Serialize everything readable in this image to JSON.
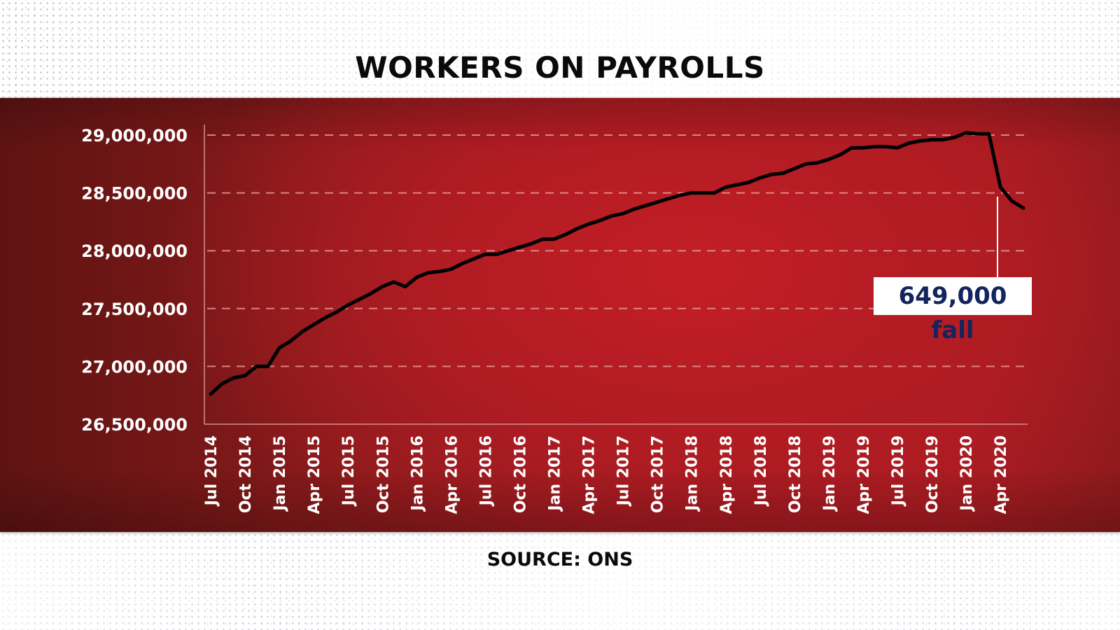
{
  "title": "WORKERS ON PAYROLLS",
  "source": "SOURCE: ONS",
  "annotation": {
    "value": "649,000",
    "label": "fall",
    "text_color": "#13245e",
    "box_color": "#ffffff"
  },
  "colors": {
    "panel_red": "#b41c23",
    "panel_dark": "#5e1312",
    "line": "#000000",
    "grid": "#e8a0a0",
    "axis_text": "#ffffff"
  },
  "chart_data": {
    "type": "line",
    "title": "WORKERS ON PAYROLLS",
    "xlabel": "",
    "ylabel": "",
    "ylim": [
      26500000,
      29000000
    ],
    "grid": true,
    "legend": "none",
    "y_ticks": [
      29000000,
      28500000,
      28000000,
      27500000,
      27000000,
      26500000
    ],
    "y_tick_labels": [
      "29,000,000",
      "28,500,000",
      "28,000,000",
      "27,500,000",
      "27,000,000",
      "26,500,000"
    ],
    "x_tick_labels": [
      "Jul 2014",
      "Oct 2014",
      "Jan 2015",
      "Apr 2015",
      "Jul 2015",
      "Oct 2015",
      "Jan 2016",
      "Apr 2016",
      "Jul 2016",
      "Oct 2016",
      "Jan 2017",
      "Apr 2017",
      "Jul 2017",
      "Oct 2017",
      "Jan 2018",
      "Apr 2018",
      "Jul 2018",
      "Oct 2018",
      "Jan 2019",
      "Apr 2019",
      "Jul 2019",
      "Oct 2019",
      "Jan 2020",
      "Apr 2020"
    ],
    "x_start": "Jul 2014",
    "x_frequency": "monthly",
    "series": [
      {
        "name": "Workers on payrolls",
        "values": [
          26760000,
          26850000,
          26900000,
          26920000,
          27000000,
          27000000,
          27160000,
          27220000,
          27300000,
          27360000,
          27420000,
          27470000,
          27530000,
          27580000,
          27630000,
          27690000,
          27730000,
          27690000,
          27770000,
          27810000,
          27820000,
          27840000,
          27890000,
          27930000,
          27970000,
          27970000,
          28000000,
          28030000,
          28060000,
          28100000,
          28100000,
          28140000,
          28190000,
          28230000,
          28260000,
          28300000,
          28320000,
          28360000,
          28390000,
          28420000,
          28450000,
          28480000,
          28500000,
          28500000,
          28500000,
          28550000,
          28570000,
          28590000,
          28630000,
          28660000,
          28670000,
          28710000,
          28750000,
          28760000,
          28790000,
          28830000,
          28890000,
          28890000,
          28900000,
          28900000,
          28890000,
          28930000,
          28950000,
          28960000,
          28960000,
          28980000,
          29020000,
          29010000,
          29010000,
          28550000,
          28430000,
          28370000
        ]
      }
    ],
    "annotations": [
      {
        "text": "649,000 fall",
        "points_to": "Apr 2020"
      }
    ]
  }
}
